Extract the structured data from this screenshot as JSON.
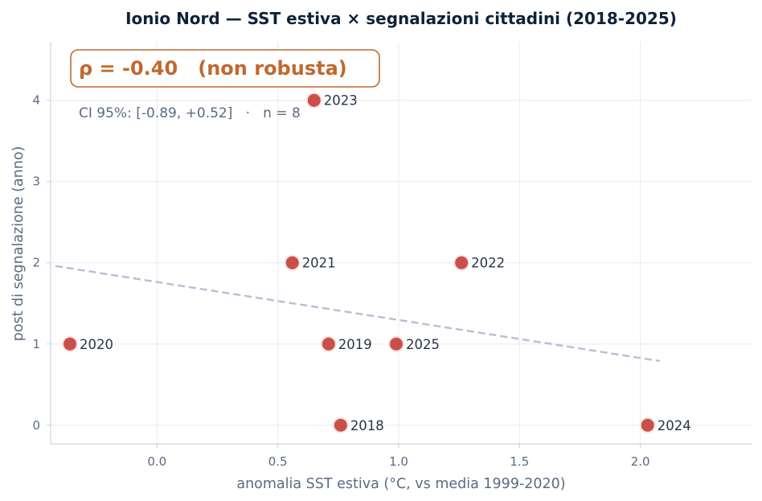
{
  "chart_data": {
    "type": "scatter",
    "title": "Ionio Nord — SST estiva × segnalazioni cittadini (2018-2025)",
    "xlabel": "anomalia SST estiva (°C, vs media 1999-2020)",
    "ylabel": "post di segnalazione (anno)",
    "xlim": [
      -0.44,
      2.46
    ],
    "ylim": [
      -0.23,
      4.72
    ],
    "xticks": [
      0.0,
      0.5,
      1.0,
      1.5,
      2.0
    ],
    "xtick_labels": [
      "0.0",
      "0.5",
      "1.0",
      "1.5",
      "2.0"
    ],
    "yticks": [
      0,
      1,
      2,
      3,
      4
    ],
    "ytick_labels": [
      "0",
      "1",
      "2",
      "3",
      "4"
    ],
    "grid": true,
    "points": [
      {
        "label": "2018",
        "x": 0.76,
        "y": 0
      },
      {
        "label": "2019",
        "x": 0.71,
        "y": 1
      },
      {
        "label": "2020",
        "x": -0.36,
        "y": 1
      },
      {
        "label": "2021",
        "x": 0.56,
        "y": 2
      },
      {
        "label": "2022",
        "x": 1.26,
        "y": 2
      },
      {
        "label": "2023",
        "x": 0.65,
        "y": 4
      },
      {
        "label": "2024",
        "x": 2.03,
        "y": 0
      },
      {
        "label": "2025",
        "x": 0.99,
        "y": 1
      }
    ],
    "trend_line": {
      "x": [
        -0.42,
        2.08
      ],
      "y": [
        1.96,
        0.79
      ],
      "style": "dashed"
    },
    "annotation_main": "ρ = -0.40   (non robusta)",
    "annotation_sub": "CI 95%: [-0.89, +0.52]   ·   n = 8",
    "colors": {
      "point": "#c9504a",
      "point_edge": "#fbe3df",
      "trend": "#b4c0d2",
      "grid": "#ebedf0",
      "axis": "#cfd5dc",
      "annotation": "#c0692e"
    }
  }
}
